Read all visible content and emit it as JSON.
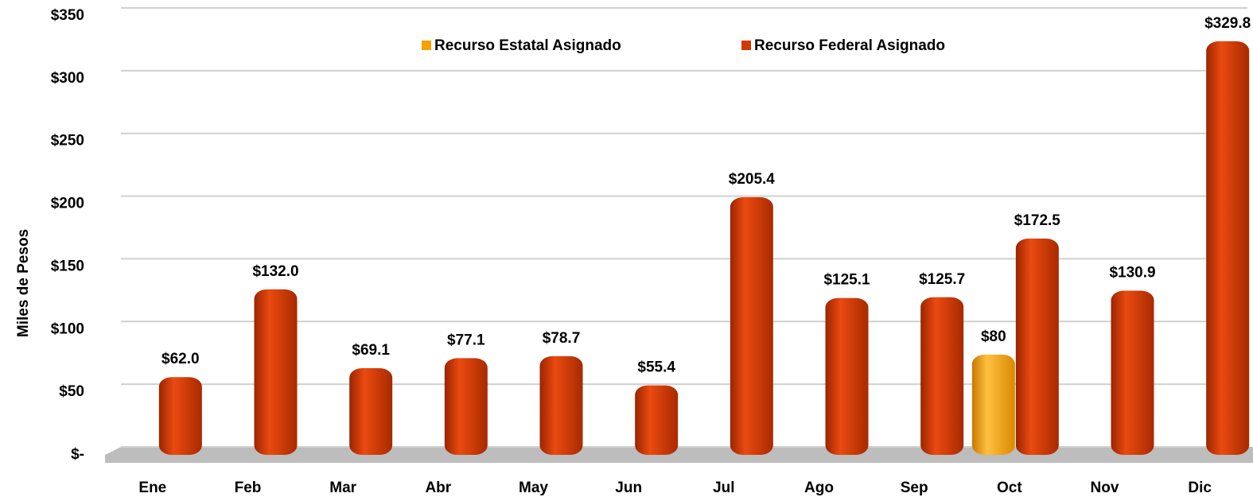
{
  "chart_data": {
    "type": "bar",
    "y_label": "Miles de Pesos",
    "categories": [
      "Ene",
      "Feb",
      "Mar",
      "Abr",
      "May",
      "Jun",
      "Jul",
      "Ago",
      "Sep",
      "Oct",
      "Nov",
      "Dic"
    ],
    "series": [
      {
        "name": "Recurso Estatal Asignado",
        "color": "#f7a000",
        "values": [
          null,
          null,
          null,
          null,
          null,
          null,
          null,
          null,
          null,
          80,
          null,
          null
        ],
        "value_labels": [
          null,
          null,
          null,
          null,
          null,
          null,
          null,
          null,
          null,
          "$80",
          null,
          null
        ]
      },
      {
        "name": "Recurso Federal Asignado",
        "color": "#d23a00",
        "values": [
          62.0,
          132.0,
          69.1,
          77.1,
          78.7,
          55.4,
          205.4,
          125.1,
          125.7,
          172.5,
          130.9,
          329.8
        ],
        "value_labels": [
          "$62.0",
          "$132.0",
          "$69.1",
          "$77.1",
          "$78.7",
          "$55.4",
          "$205.4",
          "$125.1",
          "$125.7",
          "$172.5",
          "$130.9",
          "$329.8"
        ]
      }
    ],
    "ylim": [
      0,
      350
    ],
    "yticks": [
      {
        "value": 0,
        "label": "$-"
      },
      {
        "value": 50,
        "label": "$50"
      },
      {
        "value": 100,
        "label": "$100"
      },
      {
        "value": 150,
        "label": "$150"
      },
      {
        "value": 200,
        "label": "$200"
      },
      {
        "value": 250,
        "label": "$250"
      },
      {
        "value": 300,
        "label": "$300"
      },
      {
        "value": 350,
        "label": "$350"
      }
    ],
    "grid": true
  }
}
